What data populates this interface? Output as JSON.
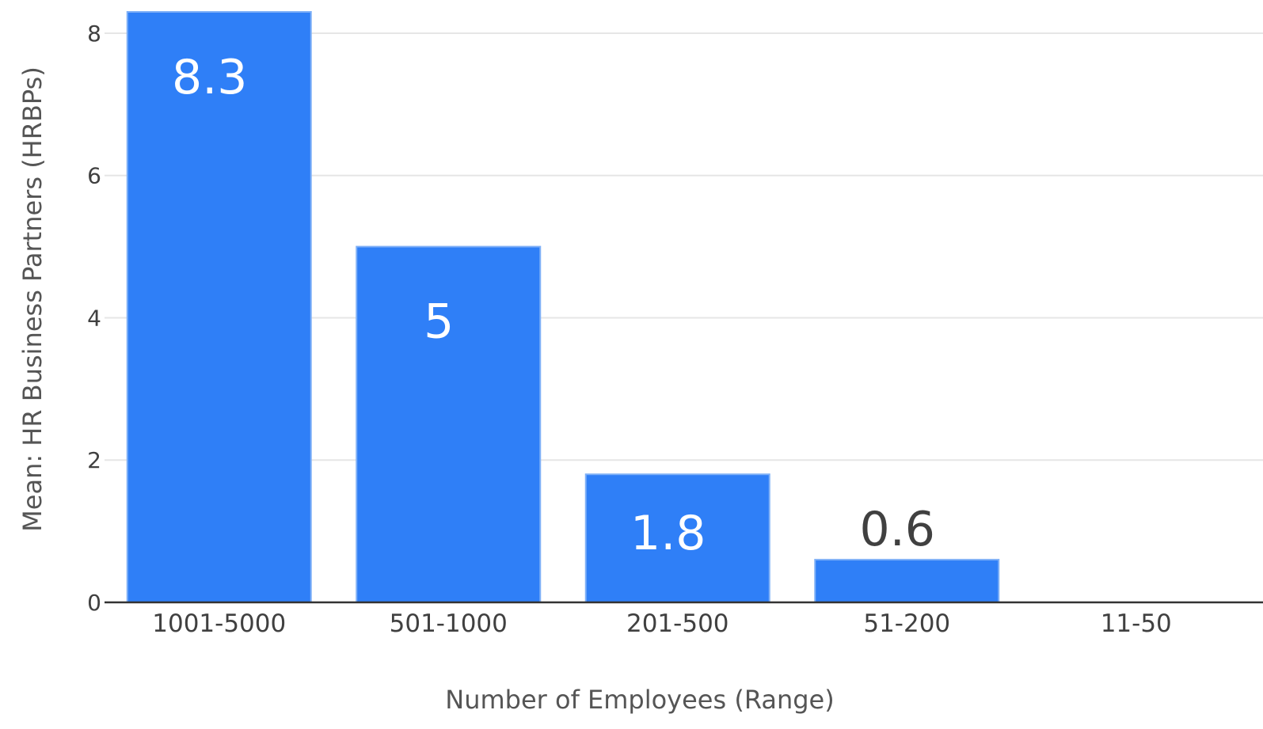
{
  "chart_data": {
    "type": "bar",
    "categories": [
      "1001-5000",
      "501-1000",
      "201-500",
      "51-200",
      "11-50"
    ],
    "values": [
      8.3,
      5,
      1.8,
      0.6,
      0
    ],
    "data_labels": [
      "8.3",
      "5",
      "1.8",
      "0.6",
      ""
    ],
    "xlabel": "Number of Employees (Range)",
    "ylabel": "Mean: HR Business Partners (HRBPs)",
    "ylim": [
      0,
      8.3
    ],
    "yticks": [
      0,
      2,
      4,
      6,
      8
    ],
    "grid": true,
    "legend": "none",
    "colors": {
      "bar": "#2f7ff7",
      "bar_edge": "#7fb0f7",
      "label_inside": "#ffffff",
      "label_outside": "#404040"
    }
  }
}
